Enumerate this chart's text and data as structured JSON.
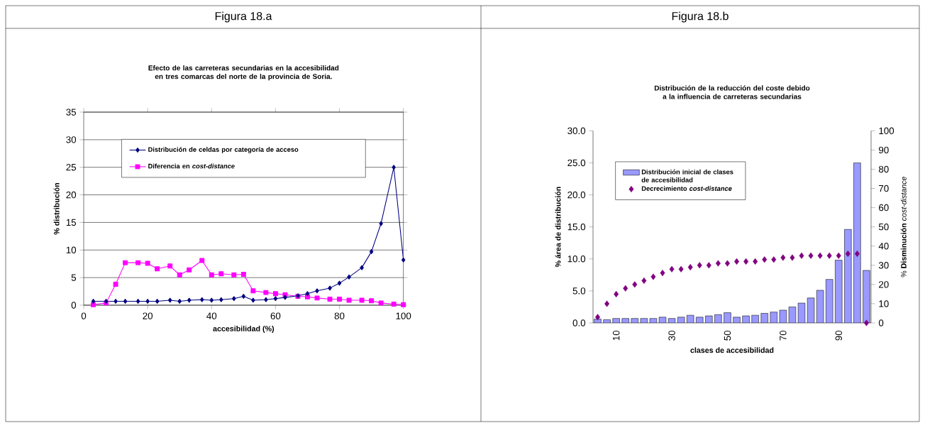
{
  "chart_data": [
    {
      "type": "line",
      "title": "Efecto de las carreteras secundarias en la accesibilidad en tres comarcas del norte de la provincia de Soria.",
      "xlabel": "accesibilidad (%)",
      "ylabel": "%  distribución",
      "annotations": [
        "Figura 18.a"
      ],
      "x": [
        3,
        7,
        10,
        13,
        17,
        20,
        23,
        27,
        30,
        33,
        37,
        40,
        43,
        47,
        50,
        53,
        57,
        60,
        63,
        67,
        70,
        73,
        77,
        80,
        83,
        87,
        90,
        93,
        97,
        100
      ],
      "series": [
        {
          "name": "Distribución de celdas por categoría de acceso",
          "color": "#000080",
          "marker": "diamond",
          "values": [
            0.7,
            0.7,
            0.7,
            0.7,
            0.7,
            0.7,
            0.7,
            0.9,
            0.7,
            0.9,
            1.0,
            0.9,
            1.0,
            1.2,
            1.6,
            0.9,
            1.0,
            1.2,
            1.4,
            1.7,
            2.1,
            2.6,
            3.1,
            4.0,
            5.1,
            6.8,
            9.7,
            14.8,
            25.0,
            8.2
          ]
        },
        {
          "name": "Diferencia en *cost-distance*",
          "color": "#ff00ff",
          "marker": "square",
          "values": [
            0.1,
            0.4,
            3.8,
            7.7,
            7.7,
            7.6,
            6.6,
            7.1,
            5.5,
            6.4,
            8.1,
            5.5,
            5.7,
            5.5,
            5.6,
            2.6,
            2.3,
            2.1,
            1.9,
            1.6,
            1.5,
            1.3,
            1.1,
            1.1,
            0.9,
            0.9,
            0.8,
            0.4,
            0.2,
            0.1
          ]
        }
      ],
      "xlim": [
        0,
        100
      ],
      "xticks": [
        0,
        20,
        40,
        60,
        80,
        100
      ],
      "ylim": [
        0,
        35
      ],
      "yticks": [
        0,
        5,
        10,
        15,
        20,
        25,
        30,
        35
      ],
      "grid": "y",
      "legend": "top",
      "line_style": "solid"
    },
    {
      "type": "bar",
      "title": "Distribución de la reducción del coste debido a la influencia de carreteras secundarias",
      "xlabel": "clases de accesibilidad",
      "ylabel": "% área de distribución",
      "y2label": "% **Disminución** *cost-distance*",
      "annotations": [
        "Figura 18.b"
      ],
      "categories": [
        null,
        null,
        "10",
        null,
        null,
        null,
        null,
        null,
        "30",
        null,
        null,
        null,
        null,
        null,
        "50",
        null,
        null,
        null,
        null,
        null,
        "70",
        null,
        null,
        null,
        null,
        null,
        "90",
        null,
        null,
        null
      ],
      "series": [
        {
          "name": "Distribución inicial de clases de accesibilidad",
          "color": "#9999ff",
          "values": [
            0.6,
            0.5,
            0.7,
            0.7,
            0.7,
            0.7,
            0.7,
            0.9,
            0.7,
            0.9,
            1.2,
            0.9,
            1.1,
            1.3,
            1.6,
            0.9,
            1.1,
            1.2,
            1.5,
            1.7,
            2.0,
            2.5,
            3.1,
            3.9,
            5.1,
            6.8,
            9.8,
            14.6,
            25.0,
            8.2
          ]
        },
        {
          "name": "Decrecimiento *cost-distance*",
          "type": "scatter",
          "axis": "y2",
          "marker": "diamond",
          "color": "#800080",
          "values": [
            3,
            10,
            15,
            18,
            20,
            22,
            24,
            26,
            28,
            28,
            29,
            30,
            30,
            31,
            31,
            32,
            32,
            32,
            33,
            33,
            34,
            34,
            35,
            35,
            35,
            35,
            35,
            36,
            36,
            0
          ]
        }
      ],
      "ylim": [
        0,
        30
      ],
      "yticks": [
        {
          "value": 0,
          "label": "0.0"
        },
        {
          "value": 5,
          "label": "5.0"
        },
        {
          "value": 10,
          "label": "10.0"
        },
        {
          "value": 15,
          "label": "15.0"
        },
        {
          "value": 20,
          "label": "20.0"
        },
        {
          "value": 25,
          "label": "25.0"
        },
        {
          "value": 30,
          "label": "30.0"
        }
      ],
      "y2lim": [
        0,
        100
      ],
      "y2ticks": [
        0,
        10,
        20,
        30,
        40,
        50,
        60,
        70,
        80,
        90,
        100
      ],
      "legend": "top left"
    }
  ]
}
